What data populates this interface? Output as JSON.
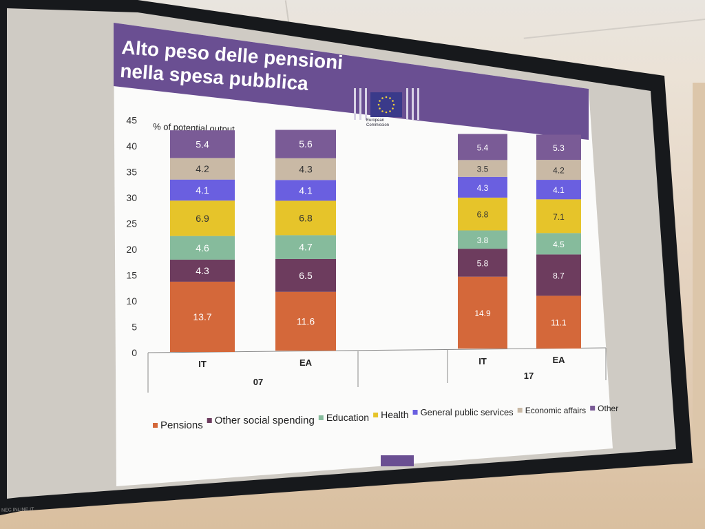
{
  "slide": {
    "title": "Alto peso delle pensioni\nnella spesa pubblica",
    "logo_text": "European\nCommission",
    "bezel_label": "NEC INLINE.IT"
  },
  "colors": {
    "header_purple": "#6a4f92",
    "Pensions": "#d4683a",
    "Other social spending": "#6d3c5e",
    "Education": "#86bb9c",
    "Health": "#e6c42a",
    "General public services": "#6a5fe0",
    "Economic affairs": "#c9b9a5",
    "Other": "#7a5b96"
  },
  "chart_data": {
    "type": "bar",
    "stacked": true,
    "ylabel": "% of potential output",
    "ylim": [
      0,
      45
    ],
    "yticks": [
      0,
      5,
      10,
      15,
      20,
      25,
      30,
      35,
      40,
      45
    ],
    "grid": false,
    "legend_position": "bottom",
    "groups": [
      {
        "label": "07",
        "categories": [
          "IT",
          "EA"
        ]
      },
      {
        "label": "17",
        "categories": [
          "IT",
          "EA"
        ]
      }
    ],
    "categories": [
      "IT",
      "EA",
      "IT",
      "EA"
    ],
    "series": [
      {
        "name": "Pensions",
        "values": [
          13.7,
          11.6,
          14.9,
          11.1
        ]
      },
      {
        "name": "Other social spending",
        "values": [
          4.3,
          6.5,
          5.8,
          8.7
        ]
      },
      {
        "name": "Education",
        "values": [
          4.6,
          4.7,
          3.8,
          4.5
        ]
      },
      {
        "name": "Health",
        "values": [
          6.9,
          6.8,
          6.8,
          7.1
        ]
      },
      {
        "name": "General public services",
        "values": [
          4.1,
          4.1,
          4.3,
          4.1
        ]
      },
      {
        "name": "Economic affairs",
        "values": [
          4.2,
          4.3,
          3.5,
          4.2
        ]
      },
      {
        "name": "Other",
        "values": [
          5.4,
          5.6,
          5.4,
          5.3
        ]
      }
    ]
  }
}
